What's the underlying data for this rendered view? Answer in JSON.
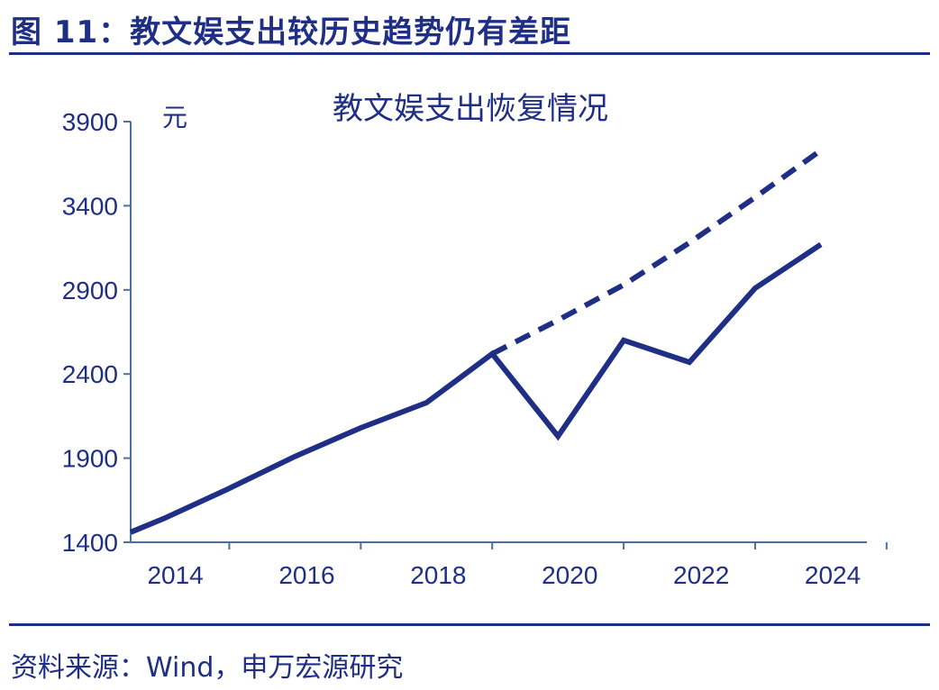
{
  "figure": {
    "title": "图 11：教文娱支出较历史趋势仍有差距",
    "source": "资料来源：Wind，申万宏源研究"
  },
  "colors": {
    "primary": "#1f2f86",
    "axis": "#4a6fa5"
  },
  "chart_data": {
    "type": "line",
    "title": "教文娱支出恢复情况",
    "ylabel": "元",
    "xlabel": "",
    "ylim": [
      1400,
      3900
    ],
    "yticks": [
      1400,
      1900,
      2400,
      2900,
      3400,
      3900
    ],
    "xticks": [
      "2014",
      "2016",
      "2018",
      "2020",
      "2022",
      "2024"
    ],
    "x": [
      2013.8,
      2014.3,
      2015.3,
      2016.3,
      2017.3,
      2018.3,
      2019.3,
      2020.3,
      2021.3,
      2022.3,
      2023.3,
      2024.3
    ],
    "grid": false,
    "series": [
      {
        "style": "solid",
        "values": [
          1460,
          1540,
          1720,
          1910,
          2080,
          2230,
          2520,
          2030,
          2600,
          2470,
          2910,
          3170
        ]
      },
      {
        "style": "dashed",
        "x": [
          2019.3,
          2020.3,
          2021.3,
          2022.3,
          2023.3,
          2024.3
        ],
        "values": [
          2520,
          2720,
          2930,
          3180,
          3450,
          3730
        ]
      }
    ]
  }
}
